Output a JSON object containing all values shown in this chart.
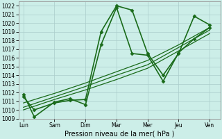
{
  "xlabel": "Pression niveau de la mer( hPa )",
  "x_labels": [
    "Lun",
    "Sam",
    "Dim",
    "Mar",
    "Mer",
    "Jeu",
    "Ven"
  ],
  "x_positions": [
    0,
    1,
    2,
    3,
    4,
    5,
    6
  ],
  "ylim": [
    1009.0,
    1022.5
  ],
  "yticks": [
    1009,
    1010,
    1011,
    1012,
    1013,
    1014,
    1015,
    1016,
    1017,
    1018,
    1019,
    1020,
    1021,
    1022
  ],
  "series": [
    {
      "x": [
        0,
        0.35,
        1.0,
        1.5,
        2.0,
        2.5,
        3.0,
        3.5,
        4.0,
        4.5,
        5.0,
        5.5,
        6.0
      ],
      "y": [
        1011.5,
        1010.0,
        1010.8,
        1011.1,
        1011.2,
        1019.0,
        1022.0,
        1021.5,
        1016.5,
        1014.0,
        1016.5,
        1020.8,
        1019.8
      ],
      "lw": 1.2,
      "marker": "D",
      "ms": 2.5
    },
    {
      "x": [
        0,
        0.35,
        1.0,
        1.5,
        2.0,
        2.5,
        3.0,
        3.5,
        4.0,
        4.5,
        5.0,
        5.5,
        6.0
      ],
      "y": [
        1011.8,
        1009.2,
        1010.9,
        1011.3,
        1010.6,
        1017.5,
        1021.8,
        1016.5,
        1016.3,
        1013.3,
        1016.6,
        1018.2,
        1019.5
      ],
      "lw": 1.2,
      "marker": "D",
      "ms": 2.5
    },
    {
      "x": [
        0,
        1,
        2,
        3,
        4,
        5,
        6
      ],
      "y": [
        1010.0,
        1011.2,
        1012.3,
        1013.5,
        1014.8,
        1016.8,
        1018.8
      ],
      "lw": 0.9,
      "marker": "None",
      "ms": 0
    },
    {
      "x": [
        0,
        1,
        2,
        3,
        4,
        5,
        6
      ],
      "y": [
        1010.3,
        1011.5,
        1012.7,
        1014.0,
        1015.2,
        1017.2,
        1019.2
      ],
      "lw": 0.9,
      "marker": "None",
      "ms": 0
    },
    {
      "x": [
        0,
        1,
        2,
        3,
        4,
        5,
        6
      ],
      "y": [
        1010.8,
        1011.9,
        1013.1,
        1014.4,
        1015.7,
        1017.5,
        1019.5
      ],
      "lw": 0.9,
      "marker": "None",
      "ms": 0
    }
  ],
  "line_color": "#1a6b1a",
  "bg_color": "#cceee8",
  "grid_color": "#aaccca",
  "grid_minor_color": "#bbddda"
}
